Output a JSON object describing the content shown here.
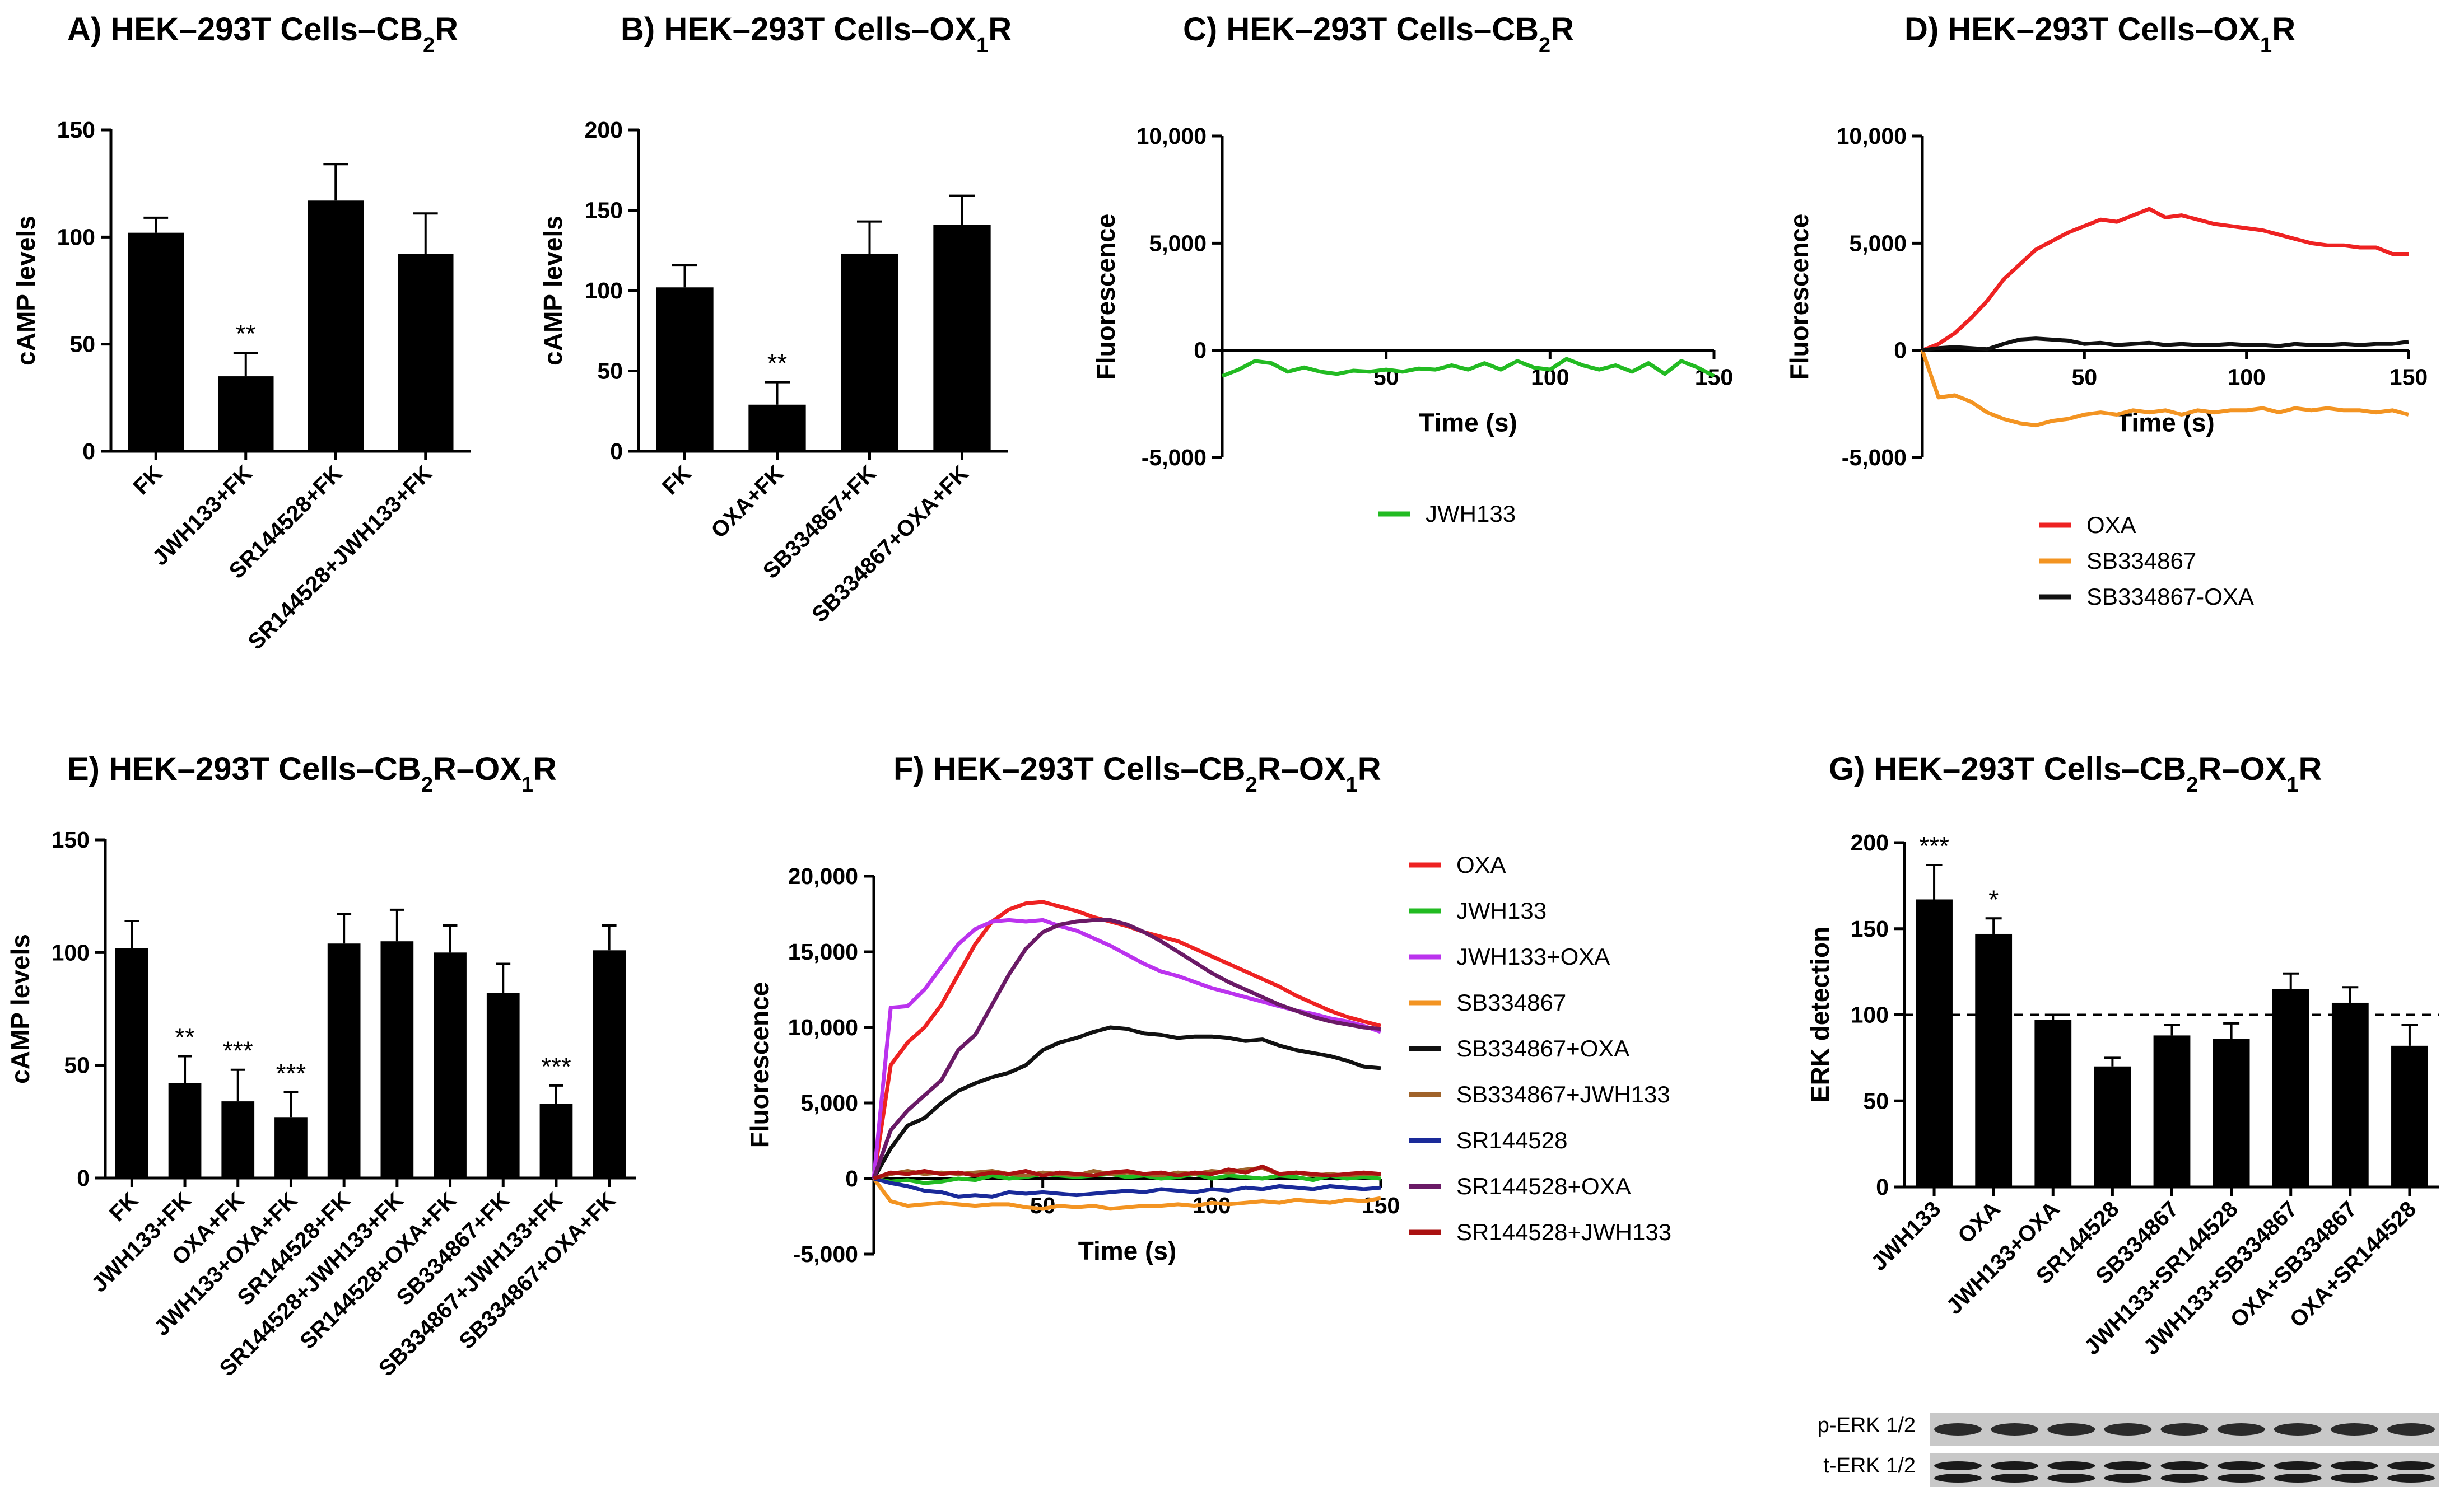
{
  "chart_data": [
    {
      "panel": "A",
      "type": "bar",
      "title_prefix": "A)",
      "title_main": "HEK–293T Cells–CB",
      "title_sub": "2",
      "title_rest": "R",
      "ylabel": "cAMP levels",
      "xlabel": "",
      "ylim": [
        0,
        150
      ],
      "yticks": [
        0,
        50,
        100,
        150
      ],
      "ytick_labels": [
        "0",
        "50",
        "100",
        "150"
      ],
      "categories": [
        "FK",
        "JWH133+FK",
        "SR144528+FK",
        "SR144528+JWH133+FK"
      ],
      "values": [
        102,
        35,
        117,
        92
      ],
      "errors": [
        7,
        11,
        17,
        19
      ],
      "significance": [
        "",
        "**",
        "",
        ""
      ]
    },
    {
      "panel": "B",
      "type": "bar",
      "title_prefix": "B)",
      "title_main": "HEK–293T Cells–OX",
      "title_sub": "1",
      "title_rest": "R",
      "ylabel": "cAMP levels",
      "xlabel": "",
      "ylim": [
        0,
        200
      ],
      "yticks": [
        0,
        50,
        100,
        150,
        200
      ],
      "ytick_labels": [
        "0",
        "50",
        "100",
        "150",
        "200"
      ],
      "categories": [
        "FK",
        "OXA+FK",
        "SB334867+FK",
        "SB334867+OXA+FK"
      ],
      "values": [
        102,
        29,
        123,
        141
      ],
      "errors": [
        14,
        14,
        20,
        18
      ],
      "significance": [
        "",
        "**",
        "",
        ""
      ]
    },
    {
      "panel": "C",
      "type": "line",
      "title_prefix": "C)",
      "title_main": "HEK–293T Cells–CB",
      "title_sub": "2",
      "title_rest": "R",
      "ylabel": "Fluorescence",
      "xlabel": "Time (s)",
      "xlim": [
        0,
        150
      ],
      "ylim": [
        -5000,
        10000
      ],
      "xticks": [
        50,
        100,
        150
      ],
      "xtick_labels": [
        "50",
        "100",
        "150"
      ],
      "yticks": [
        -5000,
        0,
        5000,
        10000
      ],
      "ytick_labels": [
        "-5,000",
        "0",
        "5,000",
        "10,000"
      ],
      "x": [
        0,
        5,
        10,
        15,
        20,
        25,
        30,
        35,
        40,
        45,
        50,
        55,
        60,
        65,
        70,
        75,
        80,
        85,
        90,
        95,
        100,
        105,
        110,
        115,
        120,
        125,
        130,
        135,
        140,
        145,
        150
      ],
      "series": [
        {
          "name": "JWH133",
          "color": "#22bb22",
          "values": [
            -1200,
            -900,
            -500,
            -600,
            -1000,
            -800,
            -1000,
            -1100,
            -950,
            -1000,
            -900,
            -1000,
            -850,
            -900,
            -700,
            -900,
            -600,
            -900,
            -500,
            -800,
            -900,
            -400,
            -700,
            -900,
            -700,
            -1000,
            -600,
            -1100,
            -500,
            -800,
            -1200
          ]
        }
      ]
    },
    {
      "panel": "D",
      "type": "line",
      "title_prefix": "D)",
      "title_main": "HEK–293T Cells–OX",
      "title_sub": "1",
      "title_rest": "R",
      "ylabel": "Fluorescence",
      "xlabel": "Time (s)",
      "xlim": [
        0,
        150
      ],
      "ylim": [
        -5000,
        10000
      ],
      "xticks": [
        50,
        100,
        150
      ],
      "xtick_labels": [
        "50",
        "100",
        "150"
      ],
      "yticks": [
        -5000,
        0,
        5000,
        10000
      ],
      "ytick_labels": [
        "-5,000",
        "0",
        "5,000",
        "10,000"
      ],
      "x": [
        0,
        5,
        10,
        15,
        20,
        25,
        30,
        35,
        40,
        45,
        50,
        55,
        60,
        65,
        70,
        75,
        80,
        85,
        90,
        95,
        100,
        105,
        110,
        115,
        120,
        125,
        130,
        135,
        140,
        145,
        150
      ],
      "series": [
        {
          "name": "OXA",
          "color": "#ee2222",
          "values": [
            0,
            300,
            800,
            1500,
            2300,
            3300,
            4000,
            4700,
            5100,
            5500,
            5800,
            6100,
            6000,
            6300,
            6600,
            6200,
            6300,
            6100,
            5900,
            5800,
            5700,
            5600,
            5400,
            5200,
            5000,
            4900,
            4900,
            4800,
            4800,
            4500,
            4500
          ]
        },
        {
          "name": "SB334867",
          "color": "#f39422",
          "values": [
            0,
            -2200,
            -2100,
            -2400,
            -2900,
            -3200,
            -3400,
            -3500,
            -3300,
            -3200,
            -3000,
            -2900,
            -3000,
            -2800,
            -2900,
            -2800,
            -3000,
            -2800,
            -2900,
            -2800,
            -2800,
            -2700,
            -2900,
            -2700,
            -2800,
            -2700,
            -2800,
            -2800,
            -2900,
            -2800,
            -3000
          ]
        },
        {
          "name": "SB334867-OXA",
          "color": "#111111",
          "values": [
            0,
            100,
            150,
            100,
            50,
            300,
            500,
            550,
            500,
            450,
            300,
            350,
            250,
            300,
            350,
            250,
            300,
            250,
            250,
            300,
            250,
            250,
            200,
            300,
            250,
            250,
            300,
            250,
            300,
            300,
            400
          ]
        }
      ]
    },
    {
      "panel": "E",
      "type": "bar",
      "title_prefix": "E)",
      "title_main": "HEK–293T Cells–CB",
      "title_sub": "2",
      "title_mid": "R–OX",
      "title_sub2": "1",
      "title_rest": "R",
      "ylabel": "cAMP levels",
      "xlabel": "",
      "ylim": [
        0,
        150
      ],
      "yticks": [
        0,
        50,
        100,
        150
      ],
      "ytick_labels": [
        "0",
        "50",
        "100",
        "150"
      ],
      "categories": [
        "FK",
        "JWH133+FK",
        "OXA+FK",
        "JWH133+OXA+FK",
        "SR144528+FK",
        "SR144528+JWH133+FK",
        "SR144528+OXA+FK",
        "SB334867+FK",
        "SB334867+JWH133+FK",
        "SB334867+OXA+FK"
      ],
      "values": [
        102,
        42,
        34,
        27,
        104,
        105,
        100,
        82,
        33,
        101
      ],
      "errors": [
        12,
        12,
        14,
        11,
        13,
        14,
        12,
        13,
        8,
        11
      ],
      "significance": [
        "",
        "**",
        "***",
        "***",
        "",
        "",
        "",
        "",
        "***",
        ""
      ]
    },
    {
      "panel": "F",
      "type": "line",
      "title_prefix": "F)",
      "title_main": "HEK–293T Cells–CB",
      "title_sub": "2",
      "title_mid": "R–OX",
      "title_sub2": "1",
      "title_rest": "R",
      "ylabel": "Fluorescence",
      "xlabel": "Time (s)",
      "xlim": [
        0,
        150
      ],
      "ylim": [
        -5000,
        20000
      ],
      "xticks": [
        50,
        100,
        150
      ],
      "xtick_labels": [
        "50",
        "100",
        "150"
      ],
      "yticks": [
        -5000,
        0,
        5000,
        10000,
        15000,
        20000
      ],
      "ytick_labels": [
        "-5,000",
        "0",
        "5,000",
        "10,000",
        "15,000",
        "20,000"
      ],
      "x": [
        0,
        5,
        10,
        15,
        20,
        25,
        30,
        35,
        40,
        45,
        50,
        55,
        60,
        65,
        70,
        75,
        80,
        85,
        90,
        95,
        100,
        105,
        110,
        115,
        120,
        125,
        130,
        135,
        140,
        145,
        150
      ],
      "series": [
        {
          "name": "OXA",
          "color": "#ee2222",
          "values": [
            0,
            7500,
            9000,
            10000,
            11500,
            13500,
            15500,
            17000,
            17800,
            18200,
            18300,
            18000,
            17700,
            17300,
            17000,
            16700,
            16300,
            16000,
            15700,
            15200,
            14700,
            14200,
            13700,
            13200,
            12700,
            12100,
            11600,
            11100,
            10700,
            10400,
            10100
          ]
        },
        {
          "name": "JWH133",
          "color": "#22bb22",
          "values": [
            0,
            -200,
            -100,
            -300,
            -200,
            0,
            -100,
            200,
            0,
            100,
            300,
            200,
            100,
            200,
            300,
            100,
            200,
            0,
            100,
            300,
            0,
            200,
            100,
            0,
            200,
            100,
            -100,
            200,
            0,
            100,
            0
          ]
        },
        {
          "name": "JWH133+OXA",
          "color": "#bb33ee",
          "values": [
            0,
            11300,
            11400,
            12500,
            14000,
            15500,
            16500,
            17000,
            17100,
            17000,
            17100,
            16700,
            16400,
            15900,
            15400,
            14800,
            14200,
            13700,
            13400,
            13000,
            12600,
            12300,
            12000,
            11700,
            11400,
            11100,
            10900,
            10600,
            10400,
            10100,
            9700
          ]
        },
        {
          "name": "SB334867",
          "color": "#f39422",
          "values": [
            0,
            -1500,
            -1800,
            -1700,
            -1600,
            -1700,
            -1800,
            -1700,
            -1700,
            -1900,
            -2000,
            -1800,
            -1900,
            -1800,
            -2000,
            -1900,
            -1800,
            -1800,
            -1700,
            -1800,
            -1600,
            -1700,
            -1600,
            -1500,
            -1600,
            -1400,
            -1500,
            -1600,
            -1400,
            -1500,
            -1300
          ]
        },
        {
          "name": "SB334867+OXA",
          "color": "#111111",
          "values": [
            0,
            2000,
            3500,
            4000,
            5000,
            5800,
            6300,
            6700,
            7000,
            7500,
            8500,
            9000,
            9300,
            9700,
            10000,
            9900,
            9600,
            9500,
            9300,
            9400,
            9400,
            9300,
            9100,
            9200,
            8800,
            8500,
            8300,
            8100,
            7800,
            7400,
            7300
          ]
        },
        {
          "name": "SB334867+JWH133",
          "color": "#a0632a",
          "values": [
            0,
            300,
            500,
            300,
            400,
            300,
            400,
            500,
            300,
            200,
            400,
            300,
            200,
            500,
            300,
            400,
            300,
            200,
            400,
            300,
            500,
            400,
            600,
            700,
            300,
            400,
            200,
            300,
            200,
            300,
            300
          ]
        },
        {
          "name": "SR144528",
          "color": "#1a2a99",
          "values": [
            0,
            -300,
            -500,
            -800,
            -900,
            -1200,
            -1100,
            -1200,
            -900,
            -1000,
            -900,
            -1000,
            -1100,
            -1000,
            -900,
            -800,
            -900,
            -700,
            -800,
            -900,
            -700,
            -800,
            -600,
            -700,
            -500,
            -600,
            -700,
            -500,
            -600,
            -700,
            -600
          ]
        },
        {
          "name": "SR144528+OXA",
          "color": "#6a1a66",
          "values": [
            0,
            3200,
            4500,
            5500,
            6500,
            8500,
            9500,
            11500,
            13500,
            15200,
            16300,
            16800,
            17000,
            17100,
            17100,
            16800,
            16300,
            15700,
            15000,
            14300,
            13600,
            13000,
            12500,
            12000,
            11500,
            11100,
            10700,
            10400,
            10200,
            10000,
            9900
          ]
        },
        {
          "name": "SR144528+JWH133",
          "color": "#aa1111",
          "values": [
            0,
            400,
            300,
            500,
            300,
            400,
            200,
            400,
            300,
            500,
            200,
            400,
            300,
            200,
            400,
            500,
            300,
            400,
            200,
            400,
            300,
            600,
            400,
            800,
            300,
            400,
            300,
            200,
            300,
            400,
            300
          ]
        }
      ]
    },
    {
      "panel": "G",
      "type": "bar",
      "title_prefix": "G)",
      "title_main": "HEK–293T Cells–CB",
      "title_sub": "2",
      "title_mid": "R–OX",
      "title_sub2": "1",
      "title_rest": "R",
      "ylabel": "ERK detection",
      "xlabel": "",
      "ylim": [
        0,
        200
      ],
      "yticks": [
        0,
        50,
        100,
        150,
        200
      ],
      "ytick_labels": [
        "0",
        "50",
        "100",
        "150",
        "200"
      ],
      "reference_line": 100,
      "categories": [
        "JWH133",
        "OXA",
        "JWH133+OXA",
        "SR144528",
        "SB334867",
        "JWH133+SR144528",
        "JWH133+SB334867",
        "OXA+SB334867",
        "OXA+SR144528"
      ],
      "values": [
        167,
        147,
        97,
        70,
        88,
        86,
        115,
        107,
        82
      ],
      "errors": [
        20,
        9,
        3,
        5,
        6,
        9,
        9,
        9,
        12
      ],
      "significance": [
        "***",
        "*",
        "",
        "",
        "",
        "",
        "",
        "",
        ""
      ],
      "blot_labels": [
        "p-ERK 1/2",
        "t-ERK 1/2"
      ]
    }
  ]
}
